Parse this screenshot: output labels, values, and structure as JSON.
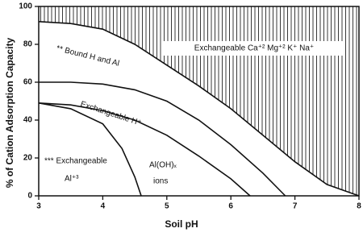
{
  "chart_data": {
    "type": "line",
    "x_label": "Soil pH",
    "y_label": "% of Cation Adsorption Capacity",
    "xlim": [
      3,
      8
    ],
    "xticks": [
      3,
      4,
      5,
      6,
      7,
      8
    ],
    "ylim": [
      0,
      100
    ],
    "yticks": [
      0,
      20,
      40,
      60,
      80,
      100
    ],
    "color": "#111111",
    "series": [
      {
        "x": [
          3,
          3.5,
          4,
          4.5,
          5,
          5.5,
          6,
          6.5,
          7,
          7.5,
          8
        ],
        "values": [
          92,
          91,
          88,
          80,
          69,
          58,
          46,
          32,
          18,
          6,
          0
        ],
        "color": "#111111"
      },
      {
        "x": [
          3,
          3.5,
          4,
          4.5,
          5,
          5.5,
          6,
          6.5,
          6.85
        ],
        "values": [
          60,
          60,
          59,
          56,
          50,
          40,
          27,
          12,
          0
        ],
        "color": "#111111"
      },
      {
        "x": [
          3,
          3.5,
          4,
          4.5,
          5,
          5.5,
          6,
          6.3
        ],
        "values": [
          49,
          48,
          45,
          40,
          32,
          21,
          9,
          0
        ],
        "color": "#111111"
      },
      {
        "x": [
          3,
          3.5,
          4,
          4.3,
          4.5,
          4.6
        ],
        "values": [
          49,
          46,
          38,
          25,
          10,
          0
        ],
        "color": "#111111"
      }
    ],
    "annotations": [
      "Exchangeable Ca⁺² Mg⁺² K⁺ Na⁺",
      "** Bound H and Al",
      "Exchangeable H⁺",
      "*** Exchangeable",
      "Al⁺³",
      "Al(OH)ₓ",
      "ions"
    ]
  }
}
